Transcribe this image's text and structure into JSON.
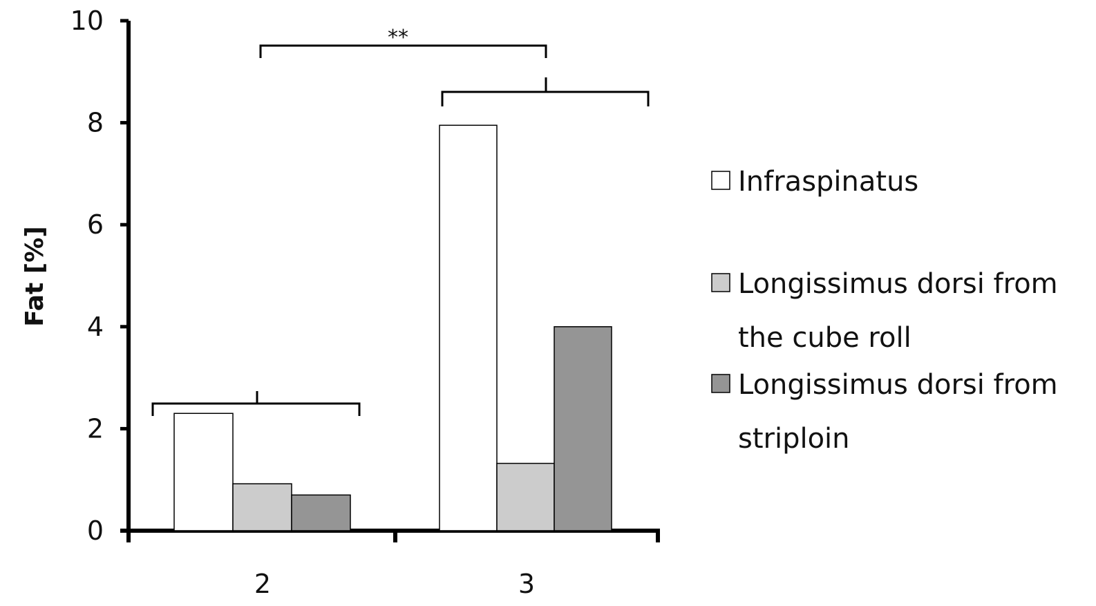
{
  "chart_data": {
    "type": "bar",
    "title": "",
    "xlabel": "",
    "ylabel": "Fat [%]",
    "ylim": [
      0,
      10
    ],
    "yticks": [
      0,
      2,
      4,
      6,
      8,
      10
    ],
    "categories": [
      "2",
      "3"
    ],
    "series": [
      {
        "name": "Infraspinatus",
        "color": "#ffffff",
        "values": [
          2.3,
          7.95
        ]
      },
      {
        "name": "Longissimus dorsi from the cube roll",
        "legend_lines": [
          "Longissimus dorsi from",
          "the cube roll"
        ],
        "color": "#cccccc",
        "values": [
          0.92,
          1.32
        ]
      },
      {
        "name": "Longissimus dorsi from striploin",
        "legend_lines": [
          "Longissimus dorsi from",
          "striploin"
        ],
        "color": "#959595",
        "values": [
          0.7,
          4.0
        ]
      }
    ],
    "legend_position": "right",
    "annotations": {
      "significance": "**"
    }
  }
}
